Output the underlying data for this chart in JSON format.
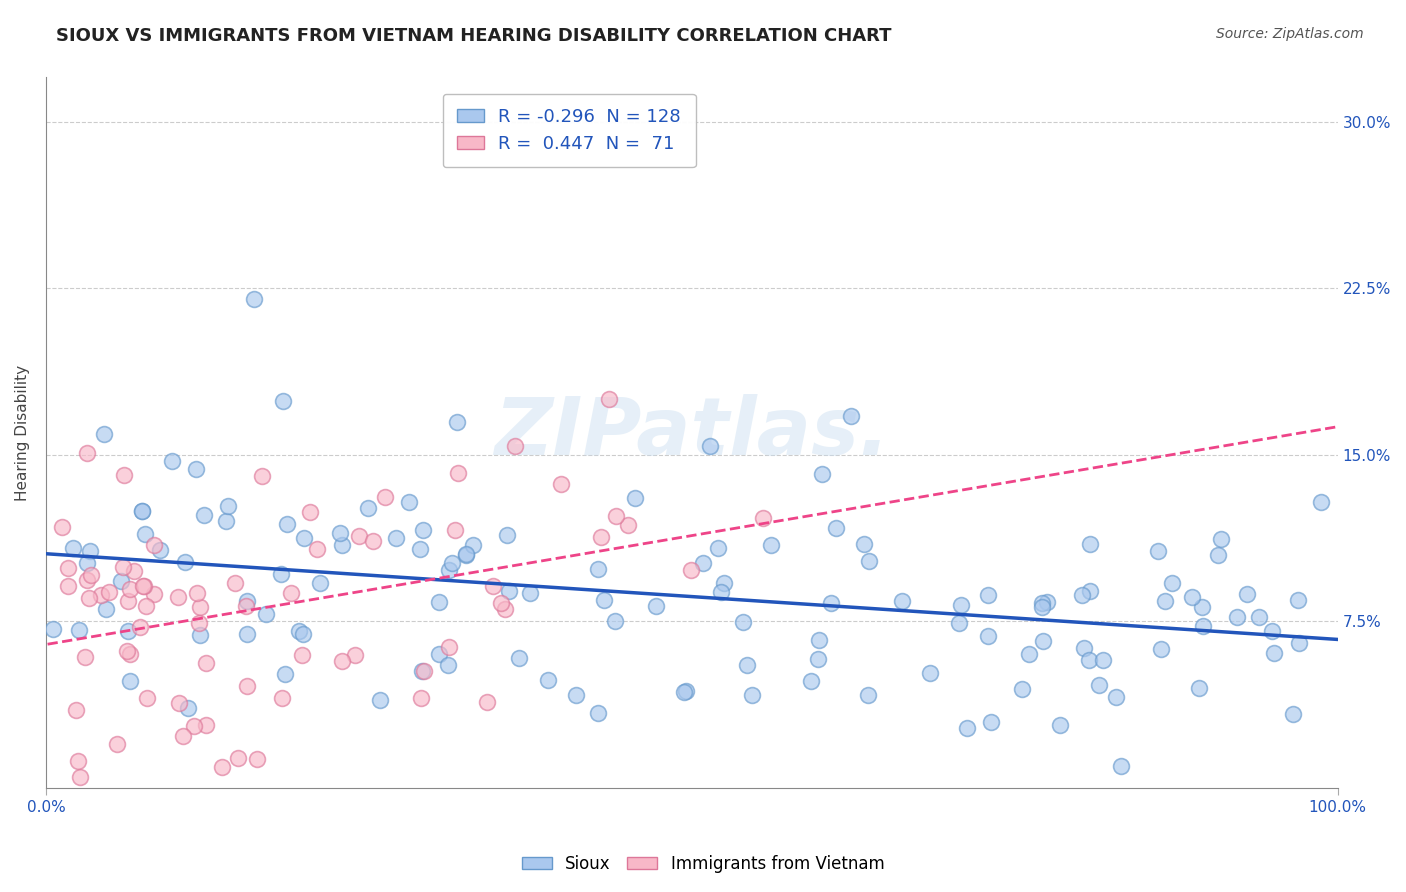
{
  "title": "SIOUX VS IMMIGRANTS FROM VIETNAM HEARING DISABILITY CORRELATION CHART",
  "source": "Source: ZipAtlas.com",
  "ylabel": "Hearing Disability",
  "xlim": [
    0.0,
    1.0
  ],
  "ylim": [
    0.0,
    0.32
  ],
  "ytick_vals": [
    0.075,
    0.15,
    0.225,
    0.3
  ],
  "ytick_labels": [
    "7.5%",
    "15.0%",
    "22.5%",
    "30.0%"
  ],
  "xtick_vals": [
    0.0,
    1.0
  ],
  "xtick_labels": [
    "0.0%",
    "100.0%"
  ],
  "grid_color": "#cccccc",
  "bg_color": "#ffffff",
  "sioux_face": "#aac8ee",
  "sioux_edge": "#6699cc",
  "vietnam_face": "#f8b8c8",
  "vietnam_edge": "#dd7799",
  "sioux_line_color": "#2255bb",
  "vietnam_line_color": "#ee4488",
  "sioux_R": -0.296,
  "sioux_N": 128,
  "vietnam_R": 0.447,
  "vietnam_N": 71,
  "legend_labels": [
    "Sioux",
    "Immigrants from Vietnam"
  ],
  "watermark": "ZIPatlas.",
  "title_fontsize": 13,
  "ylabel_fontsize": 11,
  "tick_fontsize": 11,
  "legend_fontsize": 13,
  "sioux_seed": 42,
  "vietnam_seed": 99
}
